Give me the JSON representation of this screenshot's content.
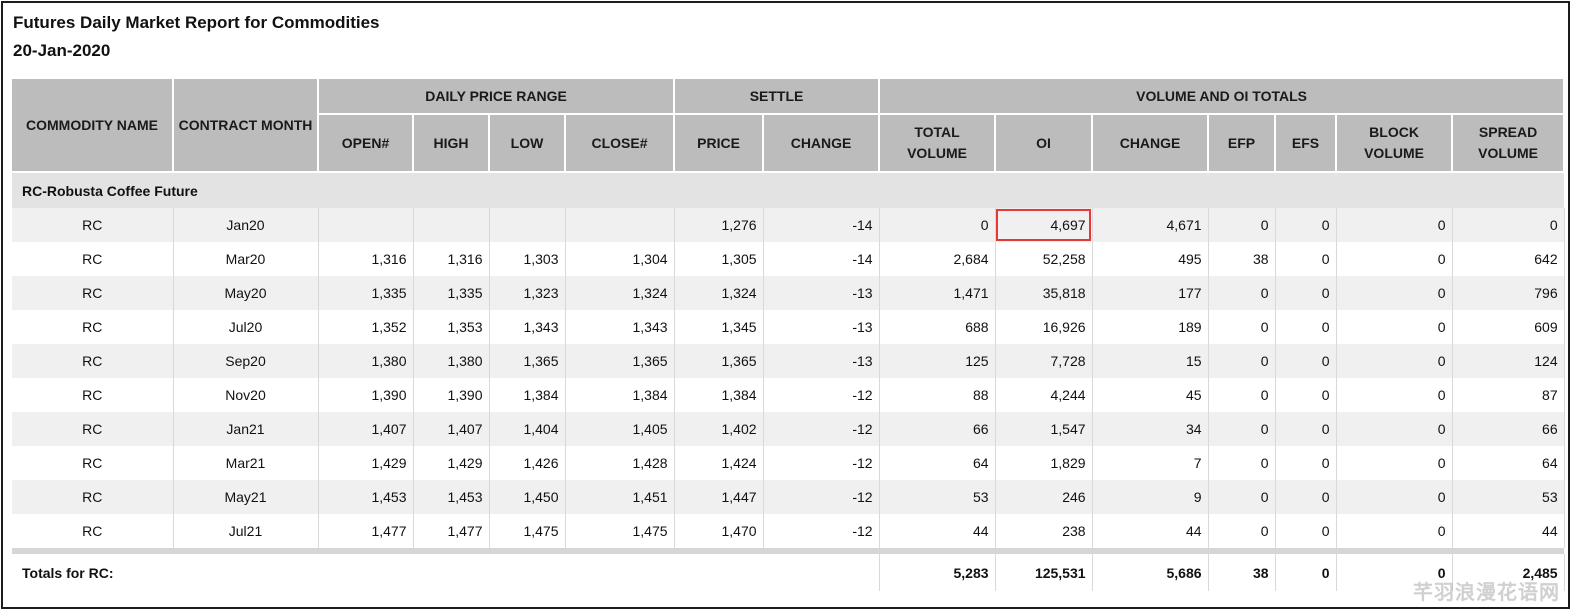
{
  "title": "Futures Daily Market Report for Commodities",
  "date": "20-Jan-2020",
  "headers": {
    "commodity_name": "COMMODITY NAME",
    "contract_month": "CONTRACT MONTH",
    "daily_price_range": "DAILY PRICE RANGE",
    "settle": "SETTLE",
    "volume_oi_totals": "VOLUME AND OI TOTALS",
    "open": "OPEN#",
    "high": "HIGH",
    "low": "LOW",
    "close": "CLOSE#",
    "price": "PRICE",
    "change": "CHANGE",
    "total_volume": "TOTAL VOLUME",
    "oi": "OI",
    "oi_change": "CHANGE",
    "efp": "EFP",
    "efs": "EFS",
    "block_volume": "BLOCK VOLUME",
    "spread_volume": "SPREAD VOLUME"
  },
  "group_label": "RC-Robusta Coffee Future",
  "rows": [
    [
      "RC",
      "Jan20",
      "",
      "",
      "",
      "",
      "1,276",
      "-14",
      "0",
      "4,697",
      "4,671",
      "0",
      "0",
      "0",
      "0"
    ],
    [
      "RC",
      "Mar20",
      "1,316",
      "1,316",
      "1,303",
      "1,304",
      "1,305",
      "-14",
      "2,684",
      "52,258",
      "495",
      "38",
      "0",
      "0",
      "642"
    ],
    [
      "RC",
      "May20",
      "1,335",
      "1,335",
      "1,323",
      "1,324",
      "1,324",
      "-13",
      "1,471",
      "35,818",
      "177",
      "0",
      "0",
      "0",
      "796"
    ],
    [
      "RC",
      "Jul20",
      "1,352",
      "1,353",
      "1,343",
      "1,343",
      "1,345",
      "-13",
      "688",
      "16,926",
      "189",
      "0",
      "0",
      "0",
      "609"
    ],
    [
      "RC",
      "Sep20",
      "1,380",
      "1,380",
      "1,365",
      "1,365",
      "1,365",
      "-13",
      "125",
      "7,728",
      "15",
      "0",
      "0",
      "0",
      "124"
    ],
    [
      "RC",
      "Nov20",
      "1,390",
      "1,390",
      "1,384",
      "1,384",
      "1,384",
      "-12",
      "88",
      "4,244",
      "45",
      "0",
      "0",
      "0",
      "87"
    ],
    [
      "RC",
      "Jan21",
      "1,407",
      "1,407",
      "1,404",
      "1,405",
      "1,402",
      "-12",
      "66",
      "1,547",
      "34",
      "0",
      "0",
      "0",
      "66"
    ],
    [
      "RC",
      "Mar21",
      "1,429",
      "1,429",
      "1,426",
      "1,428",
      "1,424",
      "-12",
      "64",
      "1,829",
      "7",
      "0",
      "0",
      "0",
      "64"
    ],
    [
      "RC",
      "May21",
      "1,453",
      "1,453",
      "1,450",
      "1,451",
      "1,447",
      "-12",
      "53",
      "246",
      "9",
      "0",
      "0",
      "0",
      "53"
    ],
    [
      "RC",
      "Jul21",
      "1,477",
      "1,477",
      "1,475",
      "1,475",
      "1,470",
      "-12",
      "44",
      "238",
      "44",
      "0",
      "0",
      "0",
      "44"
    ]
  ],
  "totals": {
    "label": "Totals for RC:",
    "total_volume": "5,283",
    "oi": "125,531",
    "change": "5,686",
    "efp": "38",
    "efs": "0",
    "block_volume": "0",
    "spread_volume": "2,485"
  },
  "highlight_color": "#e53935",
  "watermark": "芊羽浪漫花语网"
}
